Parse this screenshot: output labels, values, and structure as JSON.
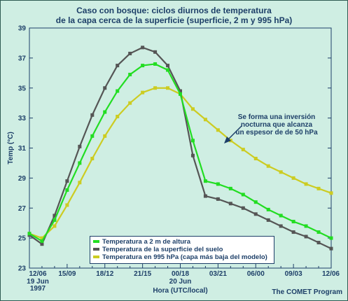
{
  "chart_data": {
    "type": "line",
    "title": "Caso con bosque: ciclos diurnos de temperatura",
    "subtitle": "de la capa cerca de la superficie (superficie, 2 m y 995 hPa)",
    "xlabel": "Hora (UTC/local)",
    "ylabel": "Temp (°C)",
    "ylim": [
      23,
      39
    ],
    "yticks": [
      23,
      25,
      27,
      29,
      31,
      33,
      35,
      37,
      39
    ],
    "xlim": [
      0,
      24
    ],
    "xticks": [
      {
        "x": 0,
        "label": "12/06",
        "sub": [
          "19 Jun",
          "1997"
        ]
      },
      {
        "x": 3,
        "label": "15/09",
        "sub": []
      },
      {
        "x": 6,
        "label": "18/12",
        "sub": []
      },
      {
        "x": 9,
        "label": "21/15",
        "sub": []
      },
      {
        "x": 12,
        "label": "00/18",
        "sub": [
          "20 Jun"
        ]
      },
      {
        "x": 15,
        "label": "03/21",
        "sub": []
      },
      {
        "x": 18,
        "label": "06/00",
        "sub": []
      },
      {
        "x": 21,
        "label": "09/03",
        "sub": []
      },
      {
        "x": 24,
        "label": "12/06",
        "sub": []
      }
    ],
    "grid": false,
    "legend_position": "bottom-center",
    "series": [
      {
        "name": "Temperatura a 2 m de altura",
        "color": "#22dd22",
        "x": [
          0,
          1,
          2,
          3,
          4,
          5,
          6,
          7,
          8,
          9,
          10,
          11,
          12,
          13,
          14,
          15,
          16,
          17,
          18,
          19,
          20,
          21,
          22,
          23,
          24
        ],
        "y": [
          25.3,
          24.8,
          26.2,
          28.2,
          30.0,
          31.8,
          33.4,
          34.8,
          35.9,
          36.5,
          36.6,
          36.2,
          34.6,
          31.5,
          28.8,
          28.6,
          28.3,
          27.9,
          27.4,
          26.9,
          26.5,
          26.1,
          25.8,
          25.4,
          25.0
        ]
      },
      {
        "name": "Temperatura de la superficie del suelo",
        "color": "#555555",
        "x": [
          0,
          1,
          2,
          3,
          4,
          5,
          6,
          7,
          8,
          9,
          10,
          11,
          12,
          13,
          14,
          15,
          16,
          17,
          18,
          19,
          20,
          21,
          22,
          23,
          24
        ],
        "y": [
          25.2,
          24.6,
          26.5,
          28.8,
          31.1,
          33.2,
          35.0,
          36.5,
          37.3,
          37.7,
          37.4,
          36.5,
          34.8,
          30.5,
          27.8,
          27.6,
          27.3,
          27.0,
          26.6,
          26.2,
          25.8,
          25.4,
          25.1,
          24.7,
          24.3
        ]
      },
      {
        "name": "Temperatura en 995 hPa (capa más baja del modelo)",
        "color": "#cccc22",
        "x": [
          0,
          1,
          2,
          3,
          4,
          5,
          6,
          7,
          8,
          9,
          10,
          11,
          12,
          13,
          14,
          15,
          16,
          17,
          18,
          19,
          20,
          21,
          22,
          23,
          24
        ],
        "y": [
          25.3,
          25.0,
          25.8,
          27.2,
          28.7,
          30.3,
          31.8,
          33.1,
          34.0,
          34.7,
          35.0,
          35.0,
          34.6,
          33.6,
          32.9,
          32.2,
          31.5,
          30.9,
          30.3,
          29.8,
          29.4,
          29.0,
          28.6,
          28.3,
          28.0
        ]
      }
    ],
    "annotation": {
      "lines": [
        "Se forma una inversión",
        "nocturna que alcanza",
        "un espesor de de 50 hPa"
      ]
    }
  },
  "credit": "The COMET Program"
}
